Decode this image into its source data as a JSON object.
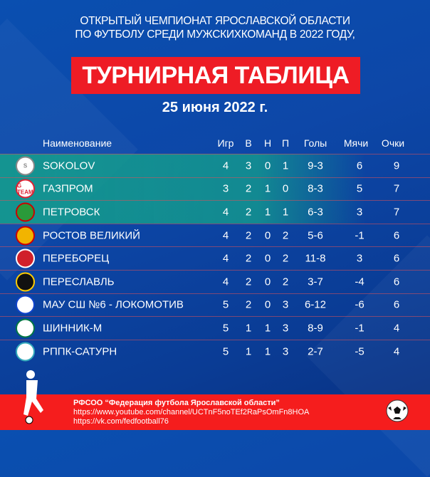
{
  "header": {
    "line1": "ОТКРЫТЫЙ ЧЕМПИОНАТ ЯРОСЛАВСКОЙ ОБЛАСТИ",
    "line2": "ПО ФУТБОЛУ СРЕДИ МУЖСКИХКОМАНД В 2022 ГОДУ,",
    "title": "ТУРНИРНАЯ ТАБЛИЦА",
    "date": "25 июня 2022 г."
  },
  "colors": {
    "banner": "#ee1c25",
    "highlight": "#14a08c",
    "background": "#0a4fb0",
    "footer": "#f51d1d"
  },
  "table": {
    "columns": [
      "Наименование",
      "Игр",
      "В",
      "Н",
      "П",
      "Голы",
      "Мячи",
      "Очки"
    ],
    "rows": [
      {
        "name": "SOKOLOV",
        "logo": "S",
        "p": "4",
        "w": "3",
        "d": "0",
        "l": "1",
        "goals": "9-3",
        "diff": "6",
        "pts": "9"
      },
      {
        "name": "ГАЗПРОМ",
        "logo": "G TEAM",
        "p": "3",
        "w": "2",
        "d": "1",
        "l": "0",
        "goals": "8-3",
        "diff": "5",
        "pts": "7"
      },
      {
        "name": "ПЕТРОВСК",
        "logo": "",
        "p": "4",
        "w": "2",
        "d": "1",
        "l": "1",
        "goals": "6-3",
        "diff": "3",
        "pts": "7"
      },
      {
        "name": "РОСТОВ ВЕЛИКИЙ",
        "logo": "",
        "p": "4",
        "w": "2",
        "d": "0",
        "l": "2",
        "goals": "5-6",
        "diff": "-1",
        "pts": "6"
      },
      {
        "name": "ПЕРЕБОРЕЦ",
        "logo": "",
        "p": "4",
        "w": "2",
        "d": "0",
        "l": "2",
        "goals": "11-8",
        "diff": "3",
        "pts": "6"
      },
      {
        "name": "ПЕРЕСЛАВЛЬ",
        "logo": "",
        "p": "4",
        "w": "2",
        "d": "0",
        "l": "2",
        "goals": "3-7",
        "diff": "-4",
        "pts": "6"
      },
      {
        "name": "МАУ СШ №6 - ЛОКОМОТИВ",
        "logo": "",
        "p": "5",
        "w": "2",
        "d": "0",
        "l": "3",
        "goals": "6-12",
        "diff": "-6",
        "pts": "6"
      },
      {
        "name": "ШИННИК-М",
        "logo": "",
        "p": "5",
        "w": "1",
        "d": "1",
        "l": "3",
        "goals": "8-9",
        "diff": "-1",
        "pts": "4"
      },
      {
        "name": "РППК-САТУРН",
        "logo": "",
        "p": "5",
        "w": "1",
        "d": "1",
        "l": "3",
        "goals": "2-7",
        "diff": "-5",
        "pts": "4"
      }
    ]
  },
  "footer": {
    "org": "РФСОО “Федерация футбола Ярославской области”",
    "youtube": "https://www.youtube.com/channel/UCTnF5noTEf2RaPsOmFn8HOA",
    "vk": "https://vk.com/fedfootball76"
  }
}
